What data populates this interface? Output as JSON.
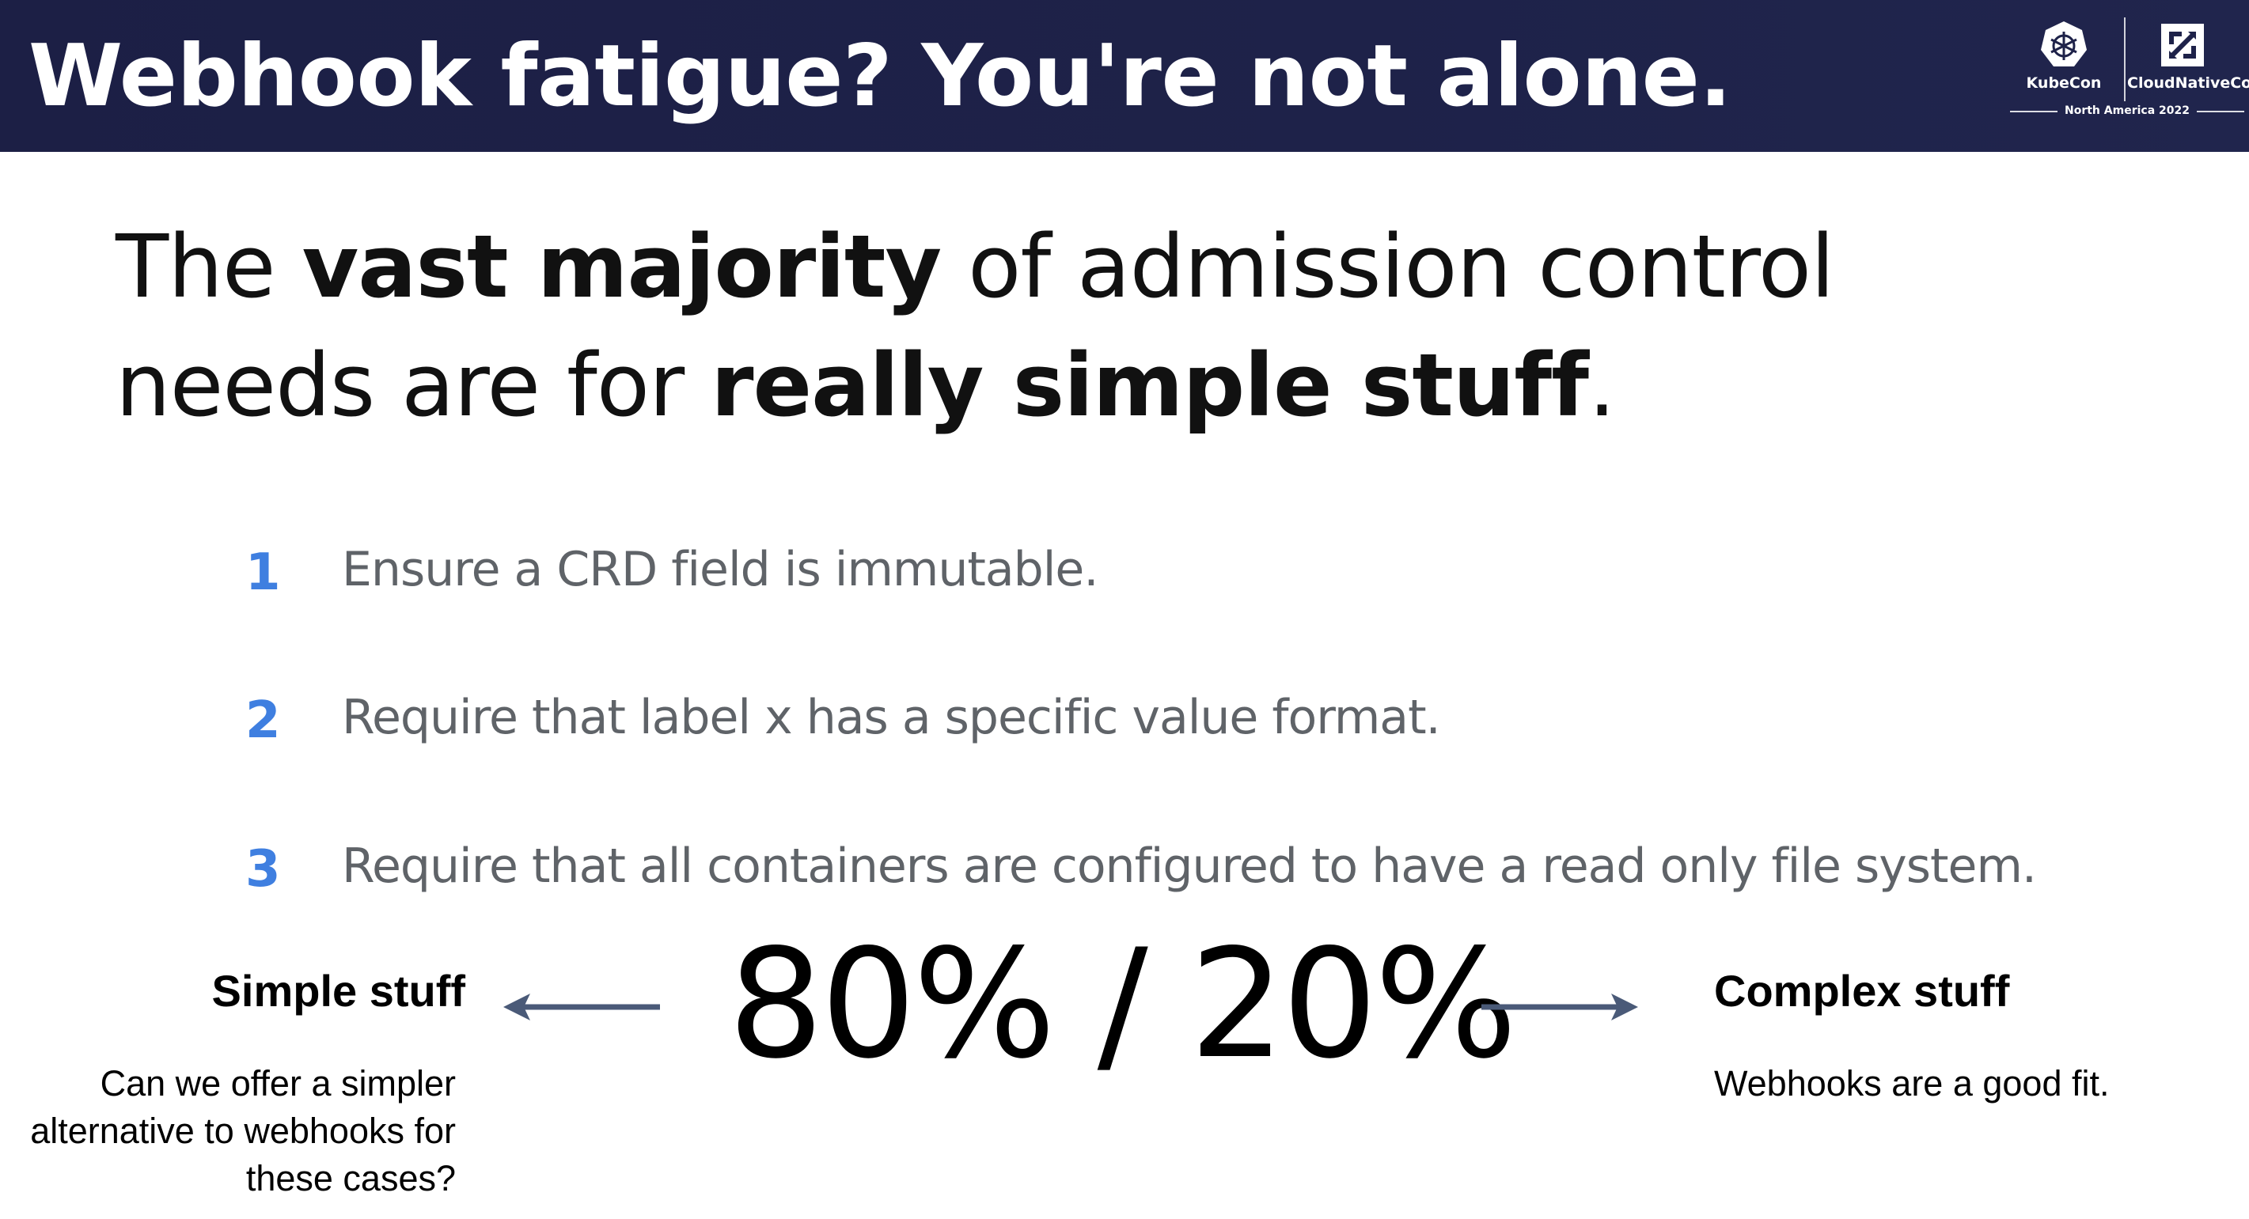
{
  "header": {
    "title": "Webhook fatigue? You're not alone.",
    "background_color": "#1e2249"
  },
  "event_logo": {
    "kubecon_label": "KubeCon",
    "cncf_label": "CloudNativeCon",
    "subtitle": "North America 2022",
    "kubecon_icon": "kubernetes-wheel-icon",
    "cncf_icon": "cncf-icon"
  },
  "headline": {
    "part1": "The ",
    "bold1": "vast majority",
    "part2": " of admission control needs are for ",
    "bold2": "really simple stuff",
    "part3": "."
  },
  "list": {
    "number_color": "#3f7fe0",
    "items": [
      {
        "number": "1",
        "text": "Ensure a CRD field is immutable."
      },
      {
        "number": "2",
        "text": "Require that label x has a specific value format."
      },
      {
        "number": "3",
        "text": "Require that all containers are configured to have a read only file system."
      }
    ]
  },
  "ratio": {
    "text": "80% / 20%",
    "simple_percent": 80,
    "complex_percent": 20
  },
  "left_panel": {
    "title": "Simple stuff",
    "description": "Can we offer a simpler alternative to webhooks for these cases?",
    "arrow_direction": "left",
    "arrow_color": "#4a5a78"
  },
  "right_panel": {
    "title": "Complex stuff",
    "description": "Webhooks are a good fit.",
    "arrow_direction": "right",
    "arrow_color": "#4a5a78"
  }
}
